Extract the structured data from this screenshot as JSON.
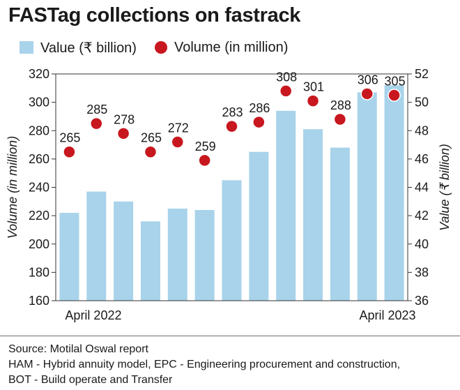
{
  "title": "FASTag collections on fastrack",
  "legend": [
    {
      "label": "Value (₹ billion)",
      "color": "#a8d3ea"
    },
    {
      "label": "Volume (in million)",
      "color": "#c8171e"
    }
  ],
  "footer": {
    "source": "Source: Motilal Oswal report",
    "note1": "HAM - Hybrid annuity model, EPC - Engineering procurement and construction,",
    "note2": "BOT - Build operate and Transfer"
  },
  "chart_data": {
    "type": "bar",
    "x_tick_labels": [
      "April 2022",
      "April 2023"
    ],
    "series": [
      {
        "name": "Value (₹ billion)",
        "kind": "bar",
        "axis": "right",
        "color": "#a8d3ea",
        "values": [
          42.2,
          43.7,
          43.0,
          41.6,
          42.5,
          42.4,
          44.5,
          46.5,
          49.4,
          48.1,
          46.8,
          50.7,
          51.2
        ]
      },
      {
        "name": "Volume (in million)",
        "kind": "scatter",
        "axis": "left",
        "color": "#c8171e",
        "values": [
          265,
          285,
          278,
          265,
          272,
          259,
          283,
          286,
          308,
          301,
          288,
          306,
          305
        ]
      }
    ],
    "y_left": {
      "label": "Volume (in million)",
      "min": 160,
      "max": 320,
      "ticks": [
        160,
        180,
        200,
        220,
        240,
        260,
        280,
        300,
        320
      ]
    },
    "y_right": {
      "label": "Value (₹ billion)",
      "min": 36,
      "max": 52,
      "ticks": [
        36,
        38,
        40,
        42,
        44,
        46,
        48,
        50,
        52
      ]
    },
    "gridlines": false,
    "legend_position": "top"
  }
}
